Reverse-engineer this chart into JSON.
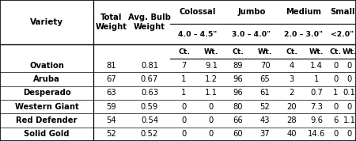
{
  "varieties": [
    "Ovation",
    "Aruba",
    "Desperado",
    "Western Giant",
    "Red Defender",
    "Solid Gold"
  ],
  "data": [
    [
      81,
      0.81,
      7,
      9.1,
      89,
      70,
      4,
      1.4,
      0,
      0
    ],
    [
      67,
      0.67,
      1,
      1.2,
      96,
      65,
      3,
      1.0,
      0,
      0
    ],
    [
      63,
      0.63,
      1,
      1.1,
      96,
      61,
      2,
      0.7,
      1,
      0.1
    ],
    [
      59,
      0.59,
      0,
      0,
      80,
      52,
      20,
      7.3,
      0,
      0
    ],
    [
      54,
      0.54,
      0,
      0,
      66,
      43,
      28,
      9.6,
      6,
      1.1
    ],
    [
      52,
      0.52,
      0,
      0,
      60,
      37,
      40,
      14.6,
      0,
      0
    ]
  ],
  "bg_color": "#ffffff",
  "border_color": "#000000",
  "header_line_color": "#555555",
  "font_family": "DejaVu Sans",
  "header_fs": 7.2,
  "data_fs": 7.2
}
